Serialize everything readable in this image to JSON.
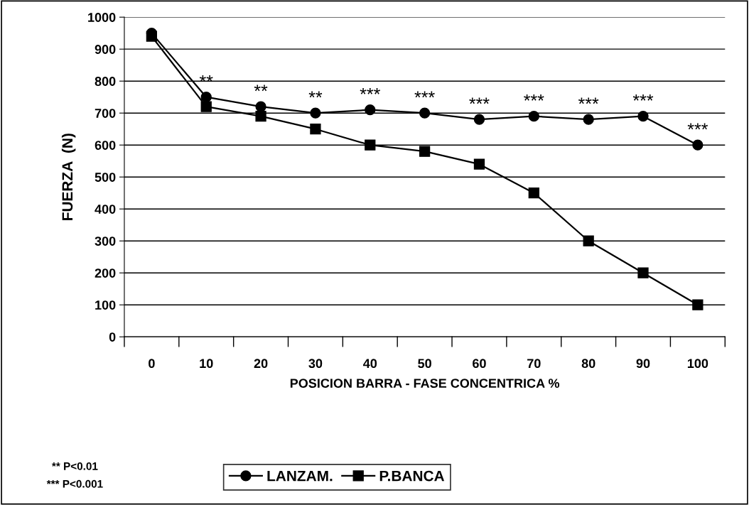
{
  "chart_data": {
    "type": "line",
    "xlabel": "POSICION BARRA - FASE CONCENTRICA %",
    "ylabel": "FUERZA  (N)",
    "categories": [
      "0",
      "10",
      "20",
      "30",
      "40",
      "50",
      "60",
      "70",
      "80",
      "90",
      "100"
    ],
    "series": [
      {
        "name": "LANZAM.",
        "color": "#000000",
        "marker": "circle",
        "values": [
          950,
          750,
          720,
          700,
          710,
          700,
          680,
          690,
          680,
          690,
          600
        ]
      },
      {
        "name": "P.BANCA",
        "color": "#000000",
        "marker": "square",
        "values": [
          940,
          720,
          690,
          650,
          600,
          580,
          540,
          450,
          300,
          200,
          100
        ]
      }
    ],
    "ylim": [
      0,
      1000
    ],
    "yticks": [
      0,
      100,
      200,
      300,
      400,
      500,
      600,
      700,
      800,
      900,
      1000
    ],
    "grid": "y",
    "legend": "bottom",
    "line_style": "solid",
    "annotations": [
      {
        "text": "**",
        "x": "10",
        "y": 750
      },
      {
        "text": "**",
        "x": "20",
        "y": 720
      },
      {
        "text": "**",
        "x": "30",
        "y": 700
      },
      {
        "text": "***",
        "x": "40",
        "y": 710
      },
      {
        "text": "***",
        "x": "50",
        "y": 700
      },
      {
        "text": "***",
        "x": "60",
        "y": 680
      },
      {
        "text": "***",
        "x": "70",
        "y": 690
      },
      {
        "text": "***",
        "x": "80",
        "y": 680
      },
      {
        "text": "***",
        "x": "90",
        "y": 690
      },
      {
        "text": "***",
        "x": "100",
        "y": 600
      },
      "** P<0.01",
      "*** P<0.001"
    ]
  }
}
